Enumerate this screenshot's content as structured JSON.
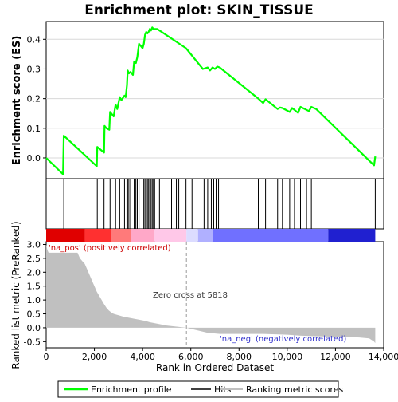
{
  "chart_data": [
    {
      "type": "line",
      "title": "Enrichment plot: SKIN_TISSUE",
      "ylabel": "Enrichment score (ES)",
      "xlim": [
        0,
        14000
      ],
      "ylim": [
        -0.07,
        0.46
      ],
      "yticks": [
        0.0,
        0.1,
        0.2,
        0.3,
        0.4
      ],
      "ytick_labels": [
        "0.0",
        "0.1",
        "0.2",
        "0.3",
        "0.4"
      ],
      "grid": true,
      "series": [
        {
          "name": "Enrichment profile",
          "color": "#00ff00",
          "x": [
            0,
            700,
            730,
            2100,
            2120,
            2400,
            2420,
            2500,
            2620,
            2650,
            2800,
            2880,
            2950,
            3050,
            3120,
            3250,
            3300,
            3350,
            3380,
            3430,
            3500,
            3600,
            3650,
            3720,
            3780,
            3850,
            3950,
            4000,
            4050,
            4100,
            4150,
            4200,
            4250,
            4300,
            4350,
            4400,
            4450,
            4600,
            4700,
            5800,
            6500,
            6700,
            6800,
            6900,
            7000,
            7100,
            7200,
            8800,
            9000,
            9100,
            9600,
            9700,
            9800,
            10100,
            10200,
            10300,
            10450,
            10550,
            10800,
            10900,
            11000,
            11200,
            13600,
            13650
          ],
          "y": [
            0.0,
            -0.055,
            0.075,
            -0.028,
            0.037,
            0.018,
            0.108,
            0.1,
            0.095,
            0.155,
            0.14,
            0.18,
            0.165,
            0.205,
            0.195,
            0.21,
            0.205,
            0.245,
            0.295,
            0.285,
            0.29,
            0.28,
            0.325,
            0.32,
            0.34,
            0.385,
            0.375,
            0.37,
            0.385,
            0.415,
            0.425,
            0.42,
            0.425,
            0.435,
            0.43,
            0.44,
            0.435,
            0.435,
            0.43,
            0.37,
            0.3,
            0.305,
            0.295,
            0.305,
            0.3,
            0.308,
            0.305,
            0.2,
            0.185,
            0.198,
            0.165,
            0.17,
            0.168,
            0.155,
            0.168,
            0.162,
            0.152,
            0.172,
            0.162,
            0.158,
            0.172,
            0.165,
            -0.025,
            0.005
          ]
        }
      ]
    },
    {
      "type": "scatter",
      "series": [
        {
          "name": "Hits",
          "color": "#000000",
          "x": [
            730,
            2120,
            2400,
            2650,
            2880,
            3050,
            3250,
            3350,
            3380,
            3430,
            3500,
            3650,
            3720,
            3780,
            3850,
            4050,
            4100,
            4150,
            4200,
            4250,
            4300,
            4350,
            4400,
            4450,
            4500,
            4700,
            5200,
            5400,
            5500,
            5800,
            6050,
            6550,
            6700,
            6850,
            6950,
            7050,
            7150,
            8800,
            9100,
            9600,
            9800,
            10100,
            10300,
            10450,
            10550,
            10800,
            11000,
            13650
          ]
        }
      ]
    },
    {
      "type": "heatmap",
      "x": [
        0,
        1600,
        2700,
        3500,
        4500,
        5818,
        6300,
        6900,
        11700,
        13650
      ],
      "colors": [
        "#e00000",
        "#ff3030",
        "#ff7a7a",
        "#ffa8c8",
        "#ffc8e8",
        "#dcdcff",
        "#b0b0ff",
        "#7070ff",
        "#2020d0"
      ]
    },
    {
      "type": "area",
      "xlabel": "Rank in Ordered Dataset",
      "ylabel": "Ranked list metric (PreRanked)",
      "xlim": [
        0,
        14000
      ],
      "ylim": [
        -0.72,
        3.1
      ],
      "xticks": [
        0,
        2000,
        4000,
        6000,
        8000,
        10000,
        12000,
        14000
      ],
      "xtick_labels": [
        "0",
        "2,000",
        "4,000",
        "6,000",
        "8,000",
        "10,000",
        "12,000",
        "14,000"
      ],
      "yticks": [
        -0.5,
        0.0,
        0.5,
        1.0,
        1.5,
        2.0,
        2.5,
        3.0
      ],
      "ytick_labels": [
        "-0.5",
        "0.0",
        "0.5",
        "1.0",
        "1.5",
        "2.0",
        "2.5",
        "3.0"
      ],
      "zero_cross": 5818,
      "annotations": [
        "'na_pos' (positively correlated)",
        "Zero cross at 5818",
        "'na_neg' (negatively correlated)"
      ],
      "series": [
        {
          "name": "Ranking metric scores",
          "color": "#c0c0c0",
          "x": [
            0,
            50,
            100,
            1300,
            1400,
            1500,
            1600,
            1700,
            1800,
            1900,
            2000,
            2100,
            2200,
            2300,
            2400,
            2500,
            2600,
            2700,
            2800,
            3000,
            3200,
            3500,
            3800,
            4100,
            4300,
            4600,
            5000,
            5818,
            6300,
            6700,
            7200,
            7800,
            9000,
            10000,
            10500,
            11000,
            12000,
            12500,
            13000,
            13400,
            13600,
            13650
          ],
          "y": [
            3.0,
            2.8,
            2.7,
            2.7,
            2.5,
            2.4,
            2.3,
            2.1,
            1.9,
            1.7,
            1.5,
            1.3,
            1.15,
            1.0,
            0.85,
            0.72,
            0.62,
            0.55,
            0.5,
            0.45,
            0.4,
            0.35,
            0.3,
            0.25,
            0.2,
            0.15,
            0.08,
            0.0,
            -0.1,
            -0.18,
            -0.22,
            -0.22,
            -0.22,
            -0.25,
            -0.28,
            -0.3,
            -0.32,
            -0.33,
            -0.35,
            -0.38,
            -0.5,
            -0.55
          ]
        }
      ]
    }
  ],
  "legend": {
    "items": [
      "Enrichment profile",
      "Hits",
      "Ranking metric scores"
    ],
    "colors": [
      "#00ff00",
      "#000000",
      "#c0c0c0"
    ]
  }
}
